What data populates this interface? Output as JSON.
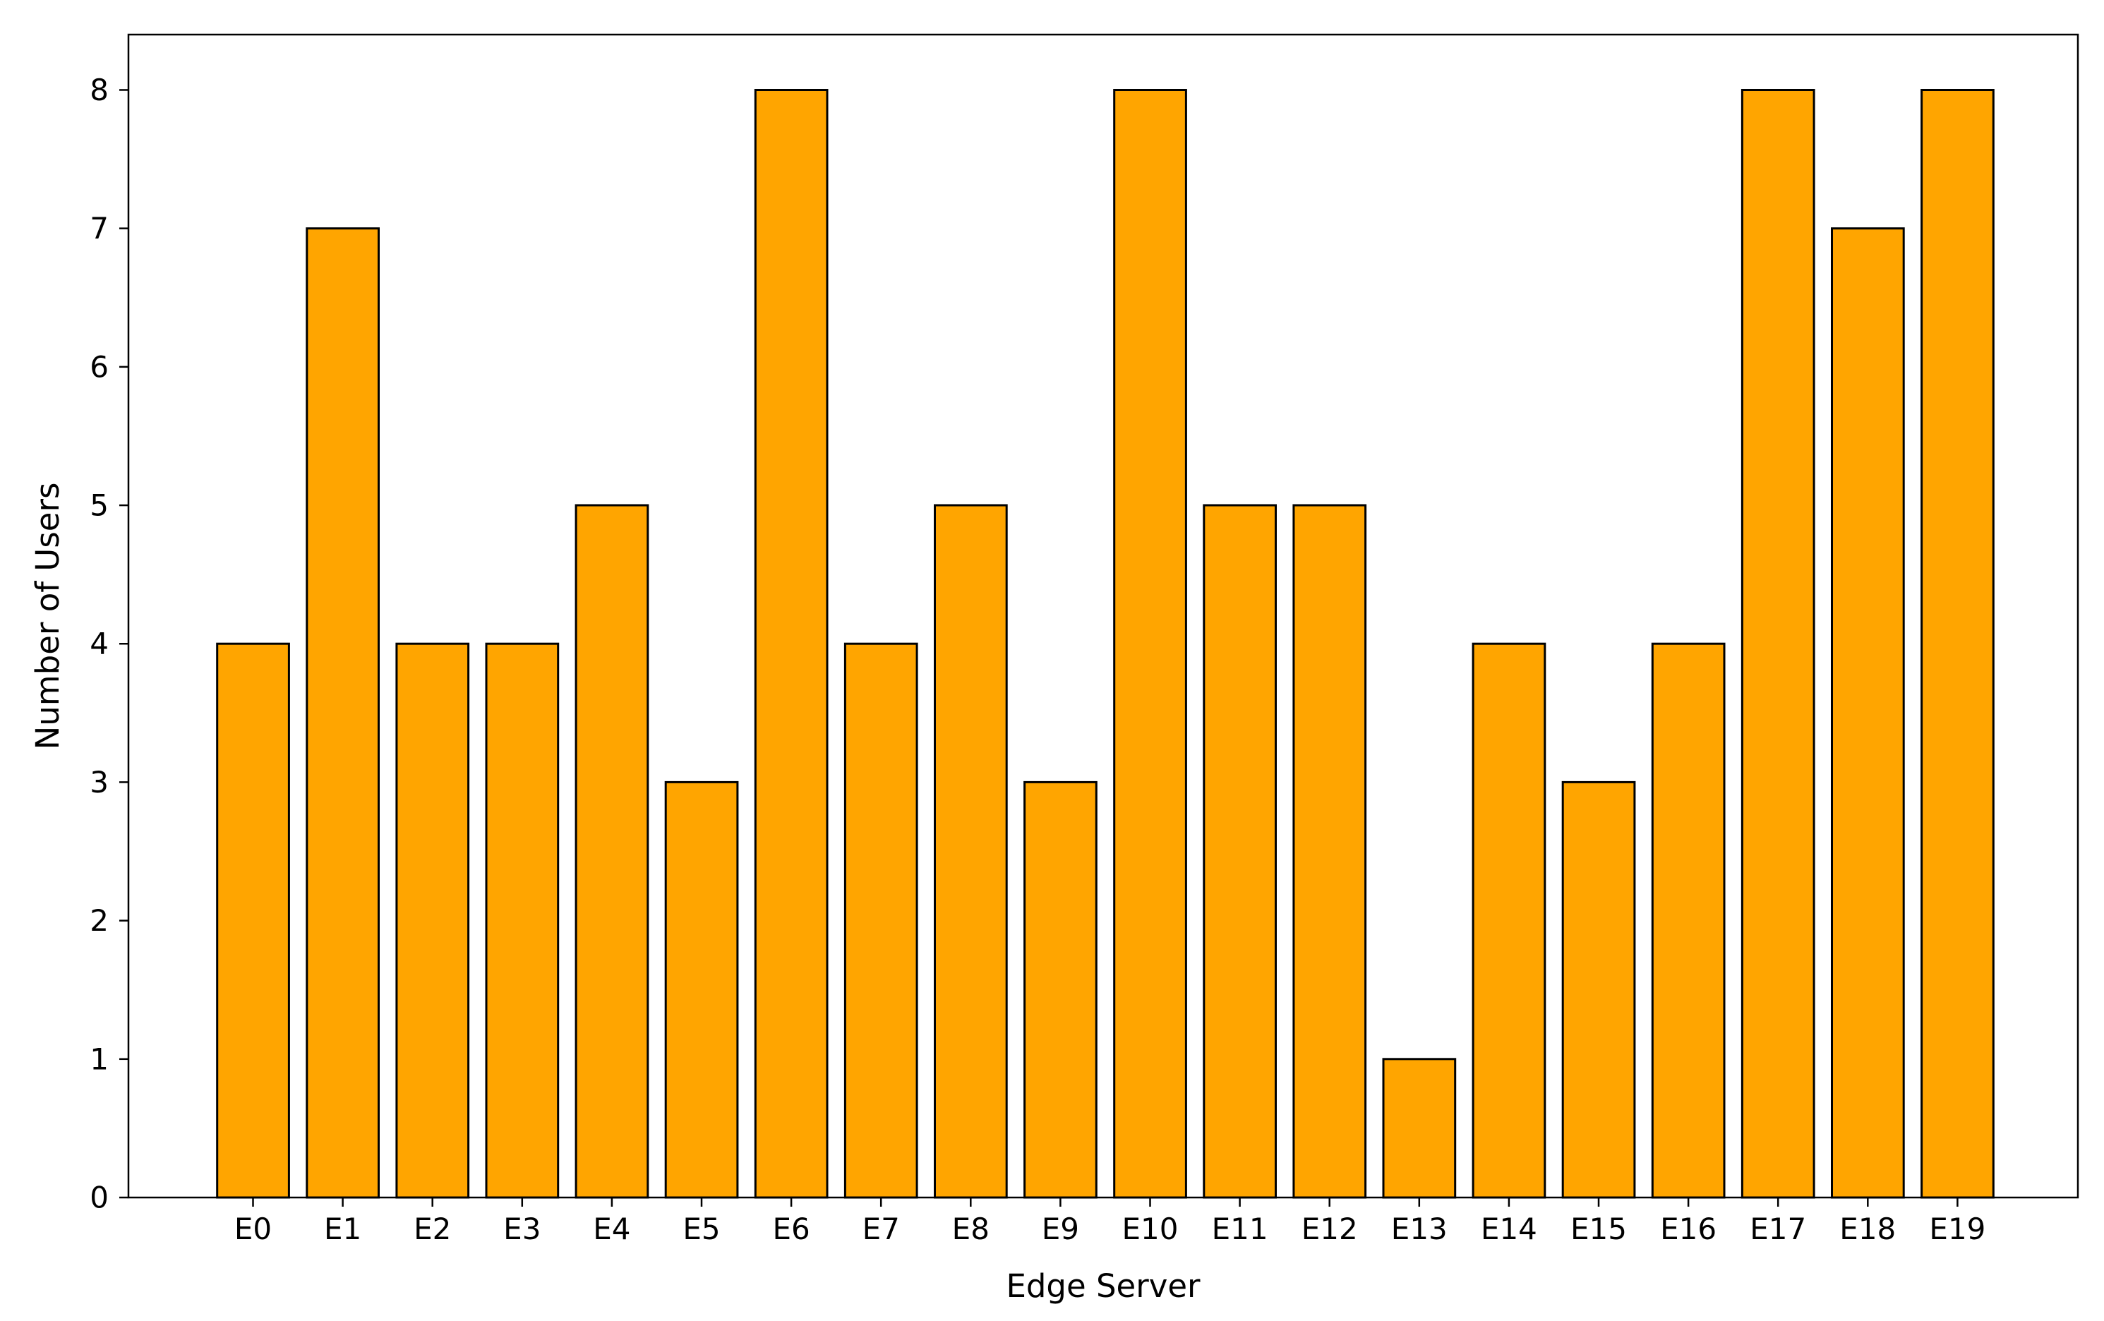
{
  "chart_data": {
    "type": "bar",
    "title": "",
    "xlabel": "Edge Server",
    "ylabel": "Number of Users",
    "categories": [
      "E0",
      "E1",
      "E2",
      "E3",
      "E4",
      "E5",
      "E6",
      "E7",
      "E8",
      "E9",
      "E10",
      "E11",
      "E12",
      "E13",
      "E14",
      "E15",
      "E16",
      "E17",
      "E18",
      "E19"
    ],
    "values": [
      4,
      7,
      4,
      4,
      5,
      3,
      8,
      4,
      5,
      3,
      8,
      5,
      5,
      1,
      4,
      3,
      4,
      8,
      7,
      8
    ],
    "ylim": [
      0,
      8.4
    ],
    "yticks": [
      0,
      1,
      2,
      3,
      4,
      5,
      6,
      7,
      8
    ],
    "grid": false,
    "legend": "none",
    "bar_color": "#FFA500",
    "edge_color": "#000000"
  }
}
